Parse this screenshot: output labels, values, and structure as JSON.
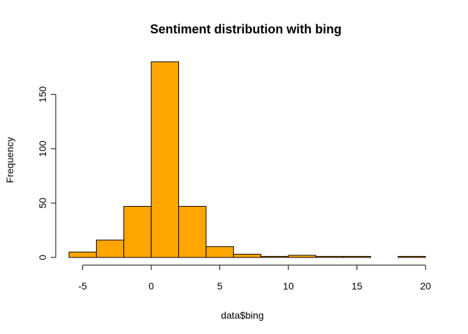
{
  "chart_data": {
    "type": "bar",
    "title": "Sentiment distribution with bing",
    "xlabel": "data$bing",
    "ylabel": "Frequency",
    "bins": [
      {
        "start": -6,
        "end": -4,
        "count": 5
      },
      {
        "start": -4,
        "end": -2,
        "count": 16
      },
      {
        "start": -2,
        "end": 0,
        "count": 47
      },
      {
        "start": 0,
        "end": 2,
        "count": 180
      },
      {
        "start": 2,
        "end": 4,
        "count": 47
      },
      {
        "start": 4,
        "end": 6,
        "count": 10
      },
      {
        "start": 6,
        "end": 8,
        "count": 3
      },
      {
        "start": 8,
        "end": 10,
        "count": 1
      },
      {
        "start": 10,
        "end": 12,
        "count": 2
      },
      {
        "start": 12,
        "end": 14,
        "count": 1
      },
      {
        "start": 14,
        "end": 16,
        "count": 1
      },
      {
        "start": 16,
        "end": 18,
        "count": 0
      },
      {
        "start": 18,
        "end": 20,
        "count": 1
      }
    ],
    "xlim": [
      -6,
      20
    ],
    "ylim": [
      0,
      180
    ],
    "x_ticks": [
      -5,
      0,
      5,
      10,
      15,
      20
    ],
    "y_ticks": [
      0,
      50,
      100,
      150
    ],
    "bar_color": "#FFA500",
    "border_color": "#000000",
    "grid": false
  }
}
